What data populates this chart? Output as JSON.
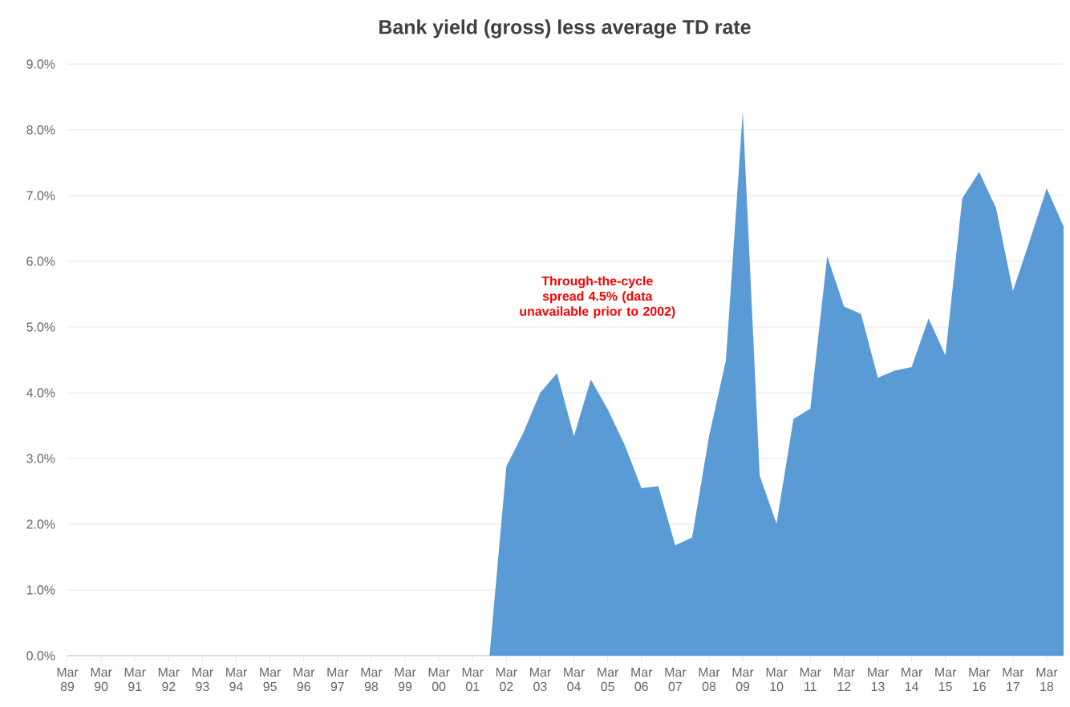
{
  "chart_data": {
    "type": "area",
    "title": "Bank yield (gross) less average TD rate",
    "categories": [
      "Mar 89",
      null,
      "Mar 90",
      null,
      "Mar 91",
      null,
      "Mar 92",
      null,
      "Mar 93",
      null,
      "Mar 94",
      null,
      "Mar 95",
      null,
      "Mar 96",
      null,
      "Mar 97",
      null,
      "Mar 98",
      null,
      "Mar 99",
      null,
      "Mar 00",
      null,
      "Mar 01",
      null,
      "Mar 02",
      null,
      "Mar 03",
      null,
      "Mar 04",
      null,
      "Mar 05",
      null,
      "Mar 06",
      null,
      "Mar 07",
      null,
      "Mar 08",
      null,
      "Mar 09",
      null,
      "Mar 10",
      null,
      "Mar 11",
      null,
      "Mar 12",
      null,
      "Mar 13",
      null,
      "Mar 14",
      null,
      "Mar 15",
      null,
      "Mar 16",
      null,
      "Mar 17",
      null,
      "Mar 18",
      null
    ],
    "series": [
      {
        "color": "#5b9bd5",
        "values": [
          null,
          null,
          null,
          null,
          null,
          null,
          null,
          null,
          null,
          null,
          null,
          null,
          null,
          null,
          null,
          null,
          null,
          null,
          null,
          null,
          null,
          null,
          null,
          null,
          null,
          0,
          2.88,
          3.39,
          4.0,
          4.3,
          3.34,
          4.2,
          3.75,
          3.21,
          2.55,
          2.58,
          1.68,
          1.8,
          3.34,
          4.49,
          8.28,
          2.74,
          2.01,
          3.6,
          3.76,
          6.08,
          5.31,
          5.2,
          4.23,
          4.34,
          4.39,
          5.13,
          4.57,
          6.96,
          7.36,
          6.81,
          5.55,
          6.32,
          7.11,
          6.53
        ]
      }
    ],
    "ylim": [
      0,
      9
    ],
    "yticks": [
      {
        "value": 0,
        "label": "0.0%"
      },
      {
        "value": 1,
        "label": "1.0%"
      },
      {
        "value": 2,
        "label": "2.0%"
      },
      {
        "value": 3,
        "label": "3.0%"
      },
      {
        "value": 4,
        "label": "4.0%"
      },
      {
        "value": 5,
        "label": "5.0%"
      },
      {
        "value": 6,
        "label": "6.0%"
      },
      {
        "value": 7,
        "label": "7.0%"
      },
      {
        "value": 8,
        "label": "8.0%"
      },
      {
        "value": 9,
        "label": "9.0%"
      }
    ],
    "grid": "y",
    "annotations": [
      "Through-the-cycle spread 4.5% (data unavailable prior to 2002)"
    ]
  }
}
